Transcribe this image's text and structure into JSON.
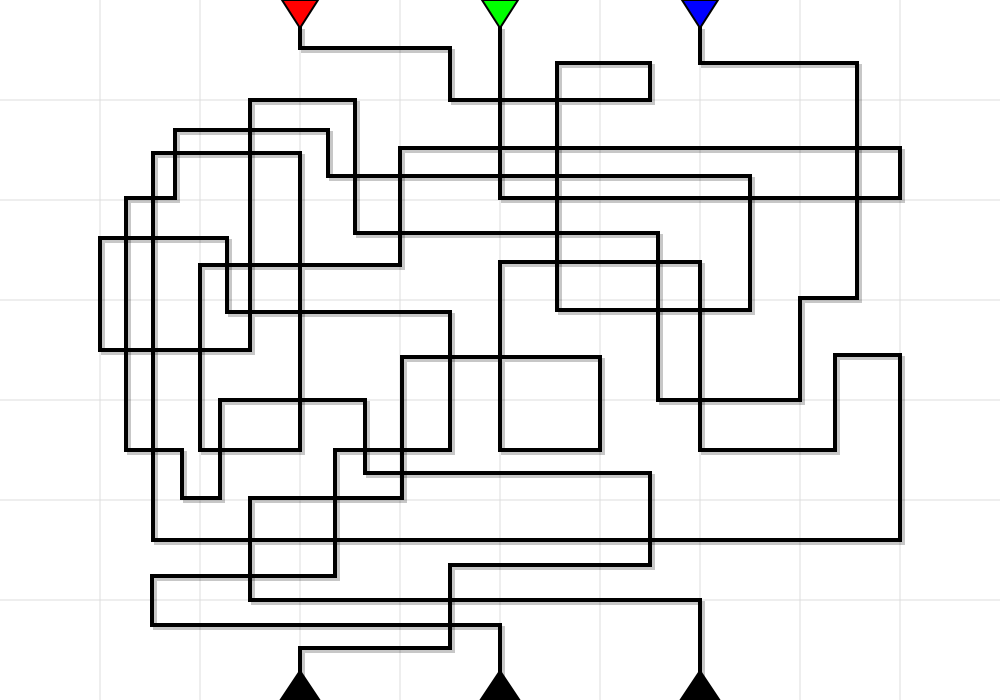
{
  "puzzle": {
    "type": "tangled-pipes",
    "grid": {
      "columns": 10,
      "rows": 7
    },
    "sources": [
      {
        "name": "red-source",
        "color": "#ff0000"
      },
      {
        "name": "green-source",
        "color": "#00ff00"
      },
      {
        "name": "blue-source",
        "color": "#0000ff"
      }
    ],
    "sinks": [
      {
        "name": "sink-left",
        "color": "#000000"
      },
      {
        "name": "sink-middle",
        "color": "#000000"
      },
      {
        "name": "sink-right",
        "color": "#000000"
      }
    ],
    "background_color": "#ffffff",
    "grid_color": "#dcdcdc",
    "line_color": "#000000"
  }
}
